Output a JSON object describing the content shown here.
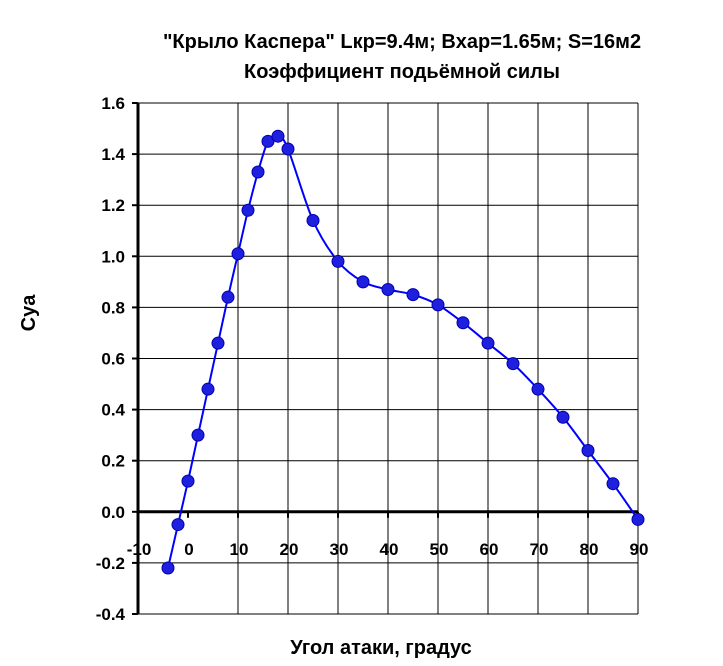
{
  "chart_data": {
    "type": "line",
    "title": "\"Крыло Каспера\"  Lкр=9.4м;  Bхар=1.65м;  S=16м2",
    "subtitle": "Коэффициент подьёмной силы",
    "xlabel": "Угол атаки, градус",
    "ylabel": "Cya",
    "xlim": [
      -10,
      90
    ],
    "ylim": [
      -0.4,
      1.6
    ],
    "x_ticks": [
      -10,
      0,
      10,
      20,
      30,
      40,
      50,
      60,
      70,
      80,
      90
    ],
    "y_ticks": [
      -0.4,
      -0.2,
      0.0,
      0.2,
      0.4,
      0.6,
      0.8,
      1.0,
      1.2,
      1.4,
      1.6
    ],
    "x_tick_labels": [
      "-10",
      "0",
      "10",
      "20",
      "30",
      "40",
      "50",
      "60",
      "70",
      "80",
      "90"
    ],
    "y_tick_labels": [
      "-0.4",
      "-0.2",
      "0.0",
      "0.2",
      "0.4",
      "0.6",
      "0.8",
      "1.0",
      "1.2",
      "1.4",
      "1.6"
    ],
    "grid": true,
    "series_color": "#0000ff",
    "marker_color": "#1f1fe0",
    "series": [
      {
        "x": [
          -4,
          -2,
          0,
          2,
          4,
          6,
          8,
          10,
          12,
          14,
          16,
          18,
          20,
          25,
          30,
          35,
          40,
          45,
          50,
          55,
          60,
          65,
          70,
          75,
          80,
          85,
          90
        ],
        "values": [
          -0.22,
          -0.05,
          0.12,
          0.3,
          0.48,
          0.66,
          0.84,
          1.01,
          1.18,
          1.33,
          1.45,
          1.47,
          1.42,
          1.14,
          0.98,
          0.9,
          0.87,
          0.85,
          0.81,
          0.74,
          0.66,
          0.58,
          0.48,
          0.37,
          0.24,
          0.11,
          -0.03
        ]
      }
    ]
  }
}
